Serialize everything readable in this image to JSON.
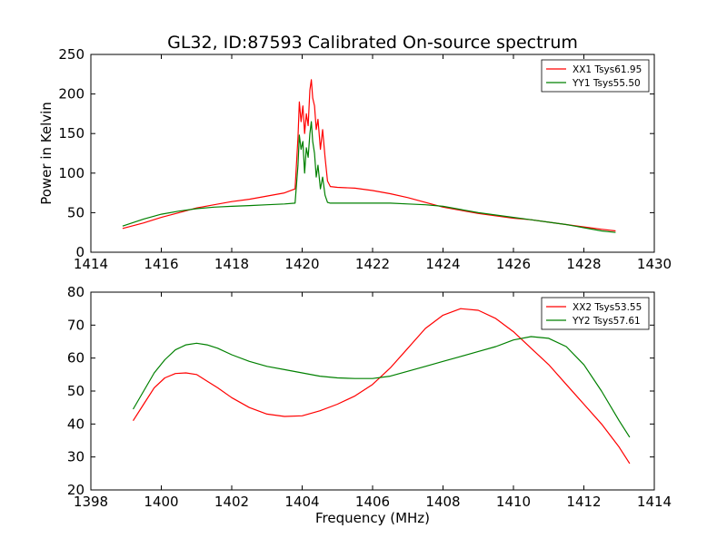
{
  "title": "GL32, ID:87593 Calibrated On-source spectrum",
  "chart_data": [
    {
      "type": "line",
      "panel": "top",
      "ylabel": "Power in Kelvin",
      "xlabel": "",
      "xlim": [
        1414,
        1430
      ],
      "ylim": [
        0,
        250
      ],
      "xticks": [
        1414,
        1416,
        1418,
        1420,
        1422,
        1424,
        1426,
        1428,
        1430
      ],
      "yticks": [
        0,
        50,
        100,
        150,
        200,
        250
      ],
      "legend_position": "top-right",
      "series": [
        {
          "name": "XX1 Tsys61.95",
          "color": "#ff0000",
          "x": [
            1414.9,
            1415.5,
            1416.0,
            1416.5,
            1417.0,
            1417.5,
            1418.0,
            1418.5,
            1419.0,
            1419.5,
            1419.8,
            1419.88,
            1419.92,
            1419.97,
            1420.02,
            1420.07,
            1420.12,
            1420.17,
            1420.22,
            1420.26,
            1420.3,
            1420.35,
            1420.4,
            1420.45,
            1420.52,
            1420.58,
            1420.65,
            1420.72,
            1420.8,
            1421.0,
            1421.5,
            1422.0,
            1422.5,
            1423.0,
            1423.5,
            1424.0,
            1424.5,
            1425.0,
            1425.5,
            1426.0,
            1426.5,
            1427.0,
            1427.5,
            1428.0,
            1428.5,
            1428.9
          ],
          "y": [
            30,
            37,
            44,
            50,
            56,
            60,
            64,
            67,
            71,
            75,
            80,
            145,
            190,
            165,
            185,
            150,
            175,
            160,
            205,
            218,
            195,
            185,
            155,
            168,
            130,
            155,
            120,
            90,
            83,
            82,
            81,
            78,
            74,
            69,
            63,
            57,
            53,
            49,
            46,
            43,
            41,
            38,
            35,
            32,
            29,
            27
          ]
        },
        {
          "name": "YY1 Tsys55.50",
          "color": "#008000",
          "x": [
            1414.9,
            1415.5,
            1416.0,
            1416.5,
            1417.0,
            1417.5,
            1418.0,
            1418.5,
            1419.0,
            1419.5,
            1419.8,
            1419.88,
            1419.92,
            1419.97,
            1420.02,
            1420.07,
            1420.12,
            1420.17,
            1420.22,
            1420.26,
            1420.3,
            1420.35,
            1420.4,
            1420.45,
            1420.52,
            1420.58,
            1420.65,
            1420.72,
            1420.8,
            1421.0,
            1421.5,
            1422.0,
            1422.5,
            1423.0,
            1423.5,
            1424.0,
            1424.5,
            1425.0,
            1425.5,
            1426.0,
            1426.5,
            1427.0,
            1427.5,
            1428.0,
            1428.5,
            1428.9
          ],
          "y": [
            33,
            42,
            48,
            52,
            55,
            57,
            58,
            59,
            60,
            61,
            62,
            110,
            148,
            130,
            140,
            100,
            132,
            120,
            150,
            165,
            140,
            125,
            95,
            110,
            80,
            95,
            72,
            63,
            62,
            62,
            62,
            62,
            62,
            61,
            60,
            58,
            54,
            50,
            47,
            44,
            41,
            38,
            35,
            31,
            27,
            25
          ]
        }
      ]
    },
    {
      "type": "line",
      "panel": "bottom",
      "xlabel": "Frequency (MHz)",
      "ylabel": "",
      "xlim": [
        1398,
        1414
      ],
      "ylim": [
        20,
        80
      ],
      "xticks": [
        1398,
        1400,
        1402,
        1404,
        1406,
        1408,
        1410,
        1412,
        1414
      ],
      "yticks": [
        20,
        30,
        40,
        50,
        60,
        70,
        80
      ],
      "legend_position": "top-right",
      "series": [
        {
          "name": "XX2 Tsys53.55",
          "color": "#ff0000",
          "x": [
            1399.2,
            1399.5,
            1399.8,
            1400.1,
            1400.4,
            1400.7,
            1401.0,
            1401.3,
            1401.6,
            1402.0,
            1402.5,
            1403.0,
            1403.5,
            1404.0,
            1404.5,
            1405.0,
            1405.5,
            1406.0,
            1406.5,
            1407.0,
            1407.5,
            1408.0,
            1408.5,
            1409.0,
            1409.5,
            1410.0,
            1410.5,
            1411.0,
            1411.5,
            1412.0,
            1412.5,
            1413.0,
            1413.3
          ],
          "y": [
            41,
            46,
            51,
            54,
            55.3,
            55.5,
            55,
            53,
            51,
            48,
            45,
            43,
            42.3,
            42.5,
            44,
            46,
            48.5,
            52,
            57,
            63,
            69,
            73,
            75,
            74.5,
            72,
            68,
            63,
            58,
            52,
            46,
            40,
            33,
            28
          ]
        },
        {
          "name": "YY2 Tsys57.61",
          "color": "#008000",
          "x": [
            1399.2,
            1399.5,
            1399.8,
            1400.1,
            1400.4,
            1400.7,
            1401.0,
            1401.3,
            1401.6,
            1402.0,
            1402.5,
            1403.0,
            1403.5,
            1404.0,
            1404.5,
            1405.0,
            1405.5,
            1406.0,
            1406.5,
            1407.0,
            1407.5,
            1408.0,
            1408.5,
            1409.0,
            1409.5,
            1410.0,
            1410.5,
            1411.0,
            1411.5,
            1412.0,
            1412.5,
            1413.0,
            1413.3
          ],
          "y": [
            44.5,
            50,
            55.5,
            59.5,
            62.5,
            64,
            64.5,
            64,
            63,
            61,
            59,
            57.5,
            56.5,
            55.5,
            54.5,
            54,
            53.8,
            53.8,
            54.5,
            56,
            57.5,
            59,
            60.5,
            62,
            63.5,
            65.5,
            66.5,
            66,
            63.5,
            58,
            50,
            41,
            36
          ]
        }
      ]
    }
  ]
}
